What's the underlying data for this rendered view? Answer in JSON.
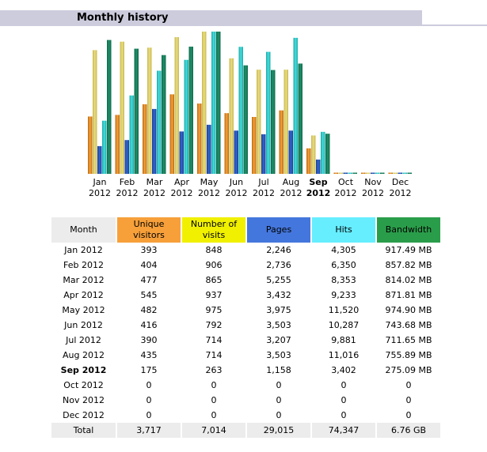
{
  "header": {
    "title": "Monthly history"
  },
  "colors": {
    "unique_visitors": "#f7a03a",
    "visits": "#f0f000",
    "pages": "#4477dd",
    "hits": "#66eeff",
    "bandwidth": "#2a9d4a",
    "header_bg": "#ccccdd"
  },
  "table": {
    "headers": {
      "month": "Month",
      "unique_visitors": "Unique visitors",
      "visits": "Number of visits",
      "pages": "Pages",
      "hits": "Hits",
      "bandwidth": "Bandwidth"
    },
    "rows": [
      {
        "month": "Jan 2012",
        "uv": "393",
        "visits": "848",
        "pages": "2,246",
        "hits": "4,305",
        "bw": "917.49 MB"
      },
      {
        "month": "Feb 2012",
        "uv": "404",
        "visits": "906",
        "pages": "2,736",
        "hits": "6,350",
        "bw": "857.82 MB"
      },
      {
        "month": "Mar 2012",
        "uv": "477",
        "visits": "865",
        "pages": "5,255",
        "hits": "8,353",
        "bw": "814.02 MB"
      },
      {
        "month": "Apr 2012",
        "uv": "545",
        "visits": "937",
        "pages": "3,432",
        "hits": "9,233",
        "bw": "871.81 MB"
      },
      {
        "month": "May 2012",
        "uv": "482",
        "visits": "975",
        "pages": "3,975",
        "hits": "11,520",
        "bw": "974.90 MB"
      },
      {
        "month": "Jun 2012",
        "uv": "416",
        "visits": "792",
        "pages": "3,503",
        "hits": "10,287",
        "bw": "743.68 MB"
      },
      {
        "month": "Jul 2012",
        "uv": "390",
        "visits": "714",
        "pages": "3,207",
        "hits": "9,881",
        "bw": "711.65 MB"
      },
      {
        "month": "Aug 2012",
        "uv": "435",
        "visits": "714",
        "pages": "3,503",
        "hits": "11,016",
        "bw": "755.89 MB"
      },
      {
        "month": "Sep 2012",
        "uv": "175",
        "visits": "263",
        "pages": "1,158",
        "hits": "3,402",
        "bw": "275.09 MB",
        "current": true
      },
      {
        "month": "Oct 2012",
        "uv": "0",
        "visits": "0",
        "pages": "0",
        "hits": "0",
        "bw": "0"
      },
      {
        "month": "Nov 2012",
        "uv": "0",
        "visits": "0",
        "pages": "0",
        "hits": "0",
        "bw": "0"
      },
      {
        "month": "Dec 2012",
        "uv": "0",
        "visits": "0",
        "pages": "0",
        "hits": "0",
        "bw": "0"
      }
    ],
    "total": {
      "label": "Total",
      "uv": "3,717",
      "visits": "7,014",
      "pages": "29,015",
      "hits": "74,347",
      "bw": "6.76 GB"
    }
  },
  "chart_data": {
    "type": "bar",
    "categories": [
      "Jan 2012",
      "Feb 2012",
      "Mar 2012",
      "Apr 2012",
      "May 2012",
      "Jun 2012",
      "Jul 2012",
      "Aug 2012",
      "Sep 2012",
      "Oct 2012",
      "Nov 2012",
      "Dec 2012"
    ],
    "month_labels": [
      "Jan",
      "Feb",
      "Mar",
      "Apr",
      "May",
      "Jun",
      "Jul",
      "Aug",
      "Sep",
      "Oct",
      "Nov",
      "Dec"
    ],
    "year_labels": [
      "2012",
      "2012",
      "2012",
      "2012",
      "2012",
      "2012",
      "2012",
      "2012",
      "2012",
      "2012",
      "2012",
      "2012"
    ],
    "current_index": 8,
    "series": [
      {
        "name": "Unique visitors",
        "values": [
          393,
          404,
          477,
          545,
          482,
          416,
          390,
          435,
          175,
          0,
          0,
          0
        ]
      },
      {
        "name": "Number of visits",
        "values": [
          848,
          906,
          865,
          937,
          975,
          792,
          714,
          714,
          263,
          0,
          0,
          0
        ]
      },
      {
        "name": "Pages",
        "values": [
          2246,
          2736,
          5255,
          3432,
          3975,
          3503,
          3207,
          3503,
          1158,
          0,
          0,
          0
        ]
      },
      {
        "name": "Hits",
        "values": [
          4305,
          6350,
          8353,
          9233,
          11520,
          10287,
          9881,
          11016,
          3402,
          0,
          0,
          0
        ]
      },
      {
        "name": "Bandwidth",
        "values": [
          917.49,
          857.82,
          814.02,
          871.81,
          974.9,
          743.68,
          711.65,
          755.89,
          275.09,
          0,
          0,
          0
        ]
      }
    ],
    "bandwidth_unit": "MB"
  }
}
